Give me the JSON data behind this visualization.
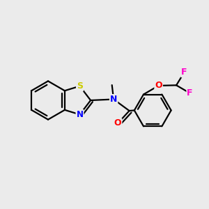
{
  "background_color": "#ebebeb",
  "bond_color": "#000000",
  "atom_colors": {
    "S": "#cccc00",
    "N": "#0000ff",
    "O": "#ff0000",
    "F": "#ff00cc",
    "C": "#000000"
  },
  "figsize": [
    3.0,
    3.0
  ],
  "dpi": 100,
  "xlim": [
    0,
    10
  ],
  "ylim": [
    0,
    10
  ]
}
